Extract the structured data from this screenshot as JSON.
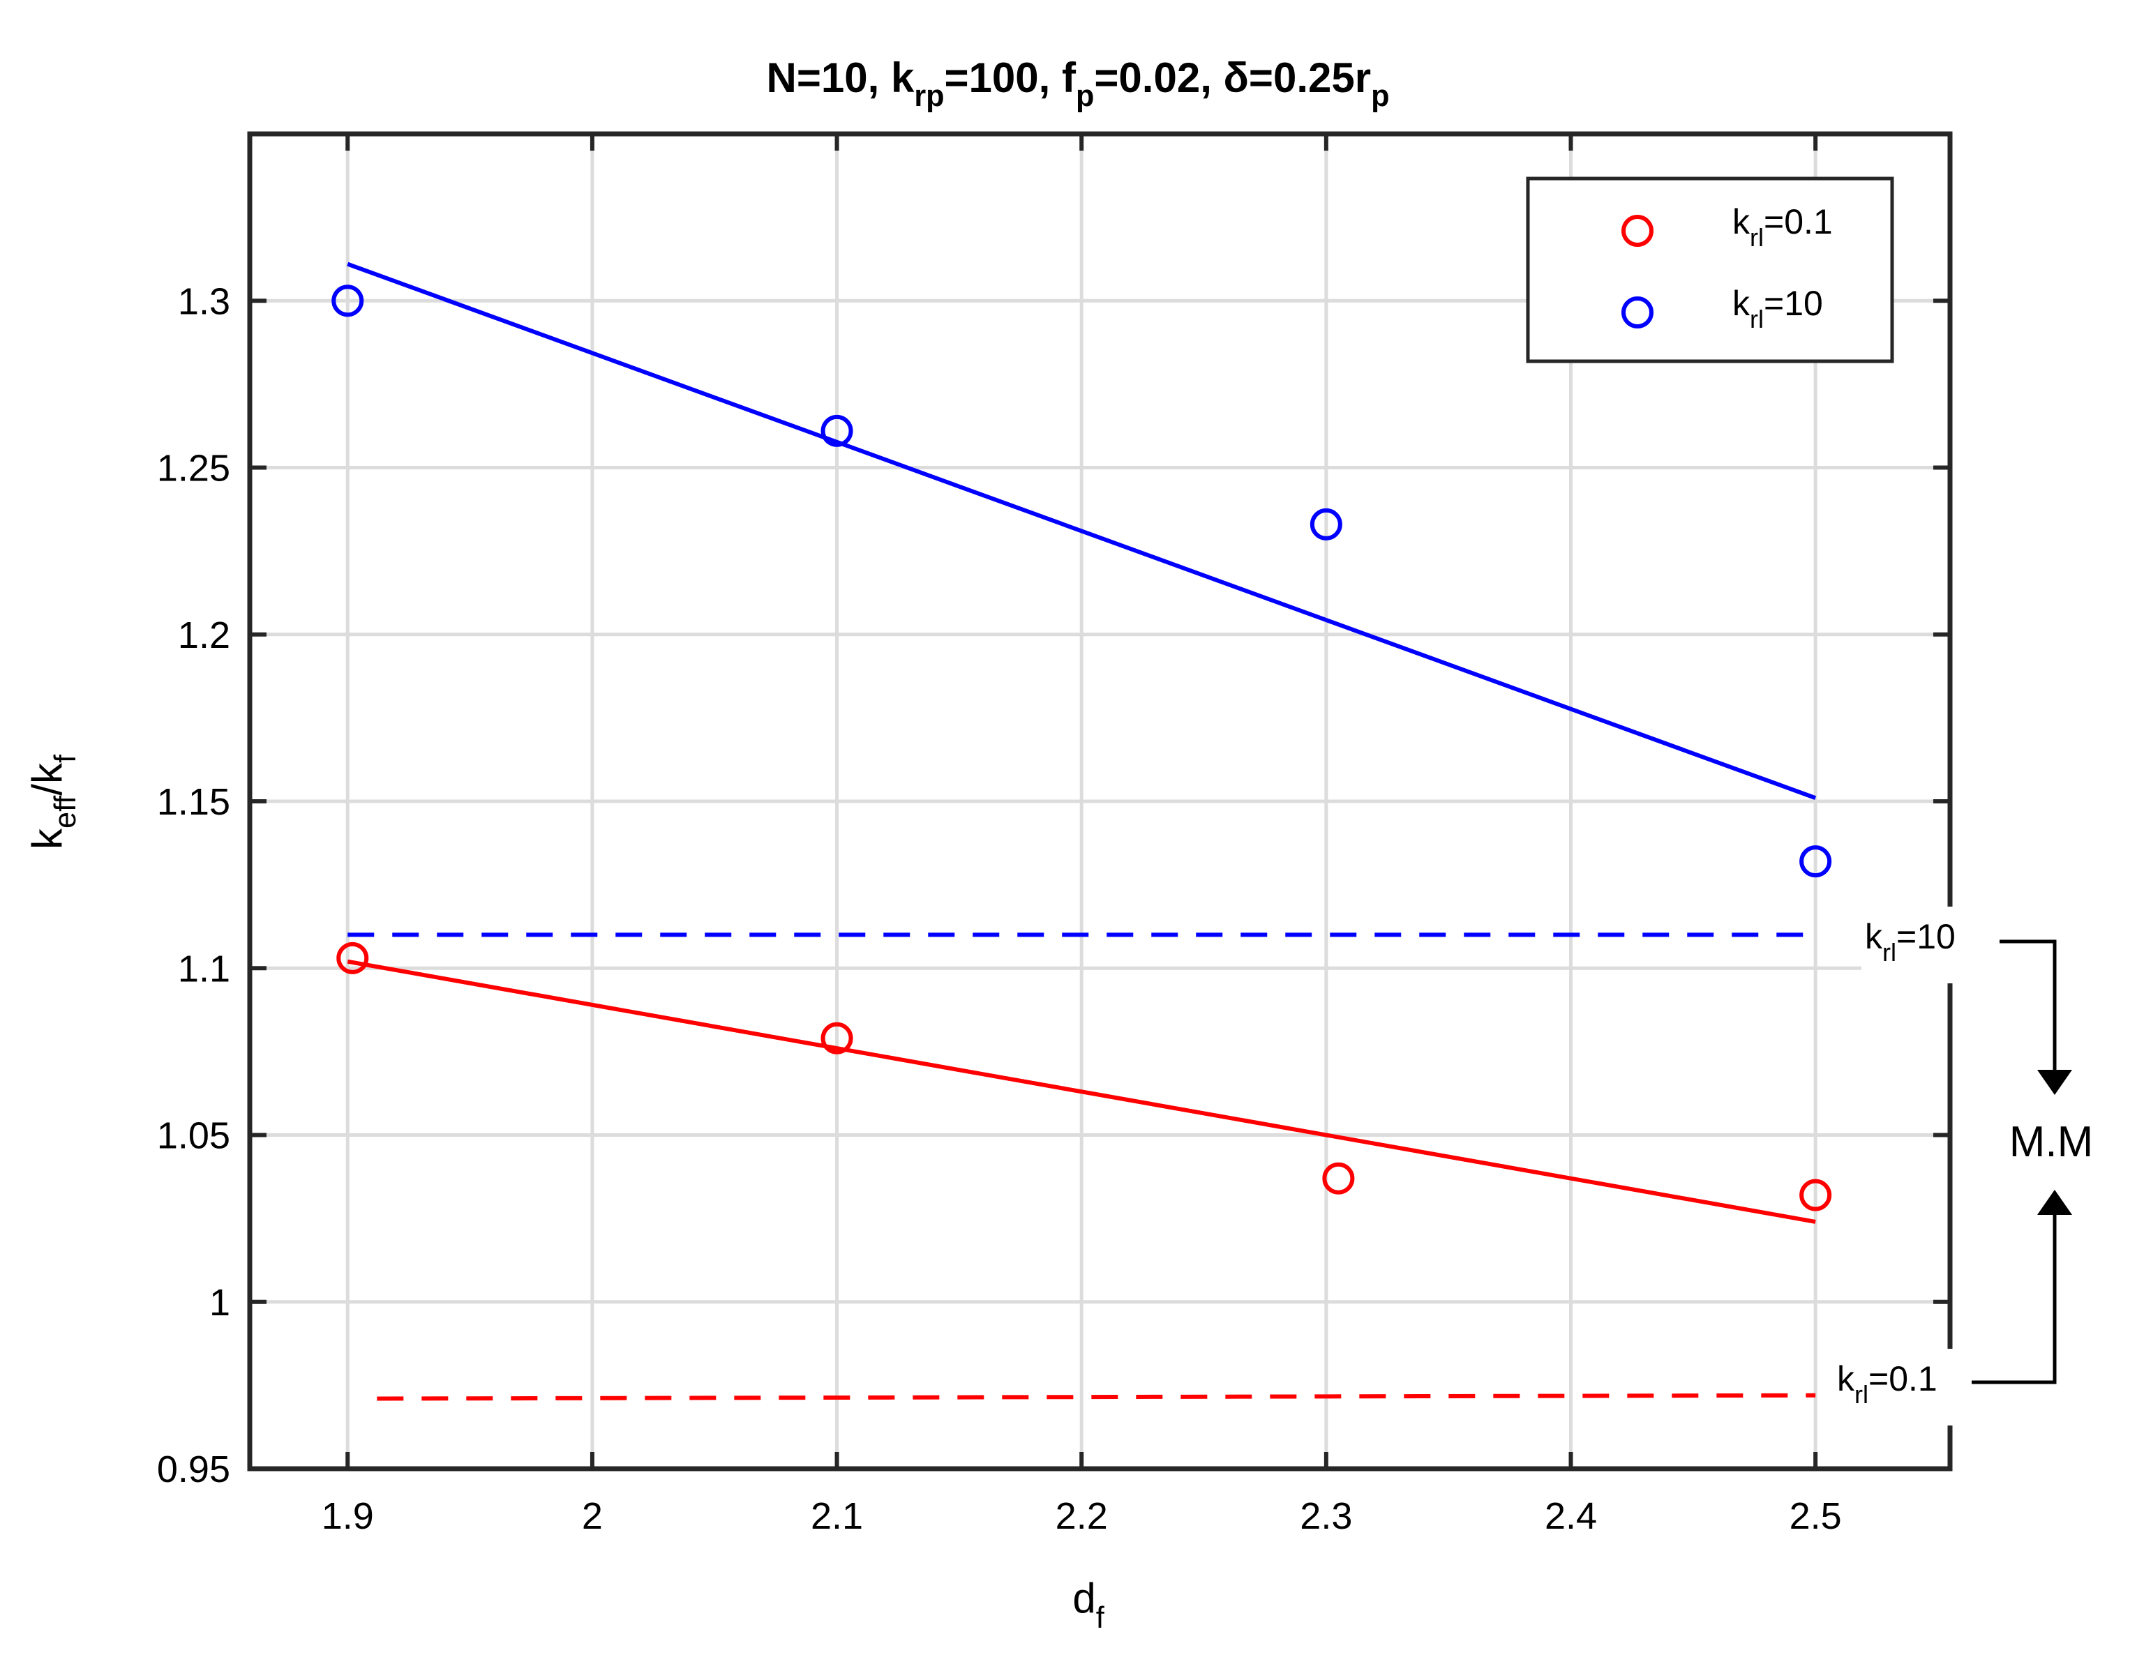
{
  "chart_data": {
    "type": "scatter",
    "title": {
      "parts": [
        {
          "text": "N=10, k"
        },
        {
          "text": "rp",
          "sub": true
        },
        {
          "text": "=100, f"
        },
        {
          "text": "p",
          "sub": true
        },
        {
          "text": "=0.02, δ=0.25r"
        },
        {
          "text": "p",
          "sub": true
        }
      ]
    },
    "xlabel": {
      "main": "d",
      "sub": "f"
    },
    "ylabel": {
      "parts": [
        {
          "text": "k"
        },
        {
          "text": "eff",
          "sub": true
        },
        {
          "text": "/k"
        },
        {
          "text": "f",
          "sub": true
        }
      ]
    },
    "xlim": [
      1.86,
      2.555
    ],
    "ylim": [
      0.95,
      1.35
    ],
    "xticks": [
      1.9,
      2.0,
      2.1,
      2.2,
      2.3,
      2.4,
      2.5
    ],
    "xtick_labels": [
      "1.9",
      "2",
      "2.1",
      "2.2",
      "2.3",
      "2.4",
      "2.5"
    ],
    "yticks": [
      0.95,
      1.0,
      1.05,
      1.1,
      1.15,
      1.2,
      1.25,
      1.3
    ],
    "ytick_labels": [
      "0.95",
      "1",
      "1.05",
      "1.1",
      "1.15",
      "1.2",
      "1.25",
      "1.3"
    ],
    "grid": true,
    "legend_position": "top-right",
    "series": [
      {
        "name": "k_rl=0.1",
        "legend": {
          "base": "k",
          "sub": "rl",
          "rest": "=0.1"
        },
        "color": "#ff0000",
        "marker": "circle",
        "points": [
          [
            1.902,
            1.103
          ],
          [
            2.1,
            1.079
          ],
          [
            2.305,
            1.037
          ],
          [
            2.5,
            1.032
          ]
        ],
        "fit_line": [
          [
            1.9,
            1.102
          ],
          [
            2.5,
            1.024
          ]
        ],
        "reference_line": {
          "x": [
            1.912,
            2.5
          ],
          "y": [
            0.971,
            0.972
          ]
        },
        "annotation": {
          "base": "k",
          "sub": "rl",
          "rest": "=0.1"
        }
      },
      {
        "name": "k_rl=10",
        "legend": {
          "base": "k",
          "sub": "rl",
          "rest": "=10"
        },
        "color": "#0000ff",
        "marker": "circle",
        "points": [
          [
            1.9,
            1.3
          ],
          [
            2.1,
            1.261
          ],
          [
            2.3,
            1.233
          ],
          [
            2.5,
            1.132
          ]
        ],
        "fit_line": [
          [
            1.9,
            1.311
          ],
          [
            2.5,
            1.151
          ]
        ],
        "reference_line": {
          "x": [
            1.9,
            2.5
          ],
          "y": [
            1.11,
            1.11
          ]
        },
        "annotation": {
          "base": "k",
          "sub": "rl",
          "rest": "=10"
        }
      }
    ],
    "side_label": "M.M"
  }
}
